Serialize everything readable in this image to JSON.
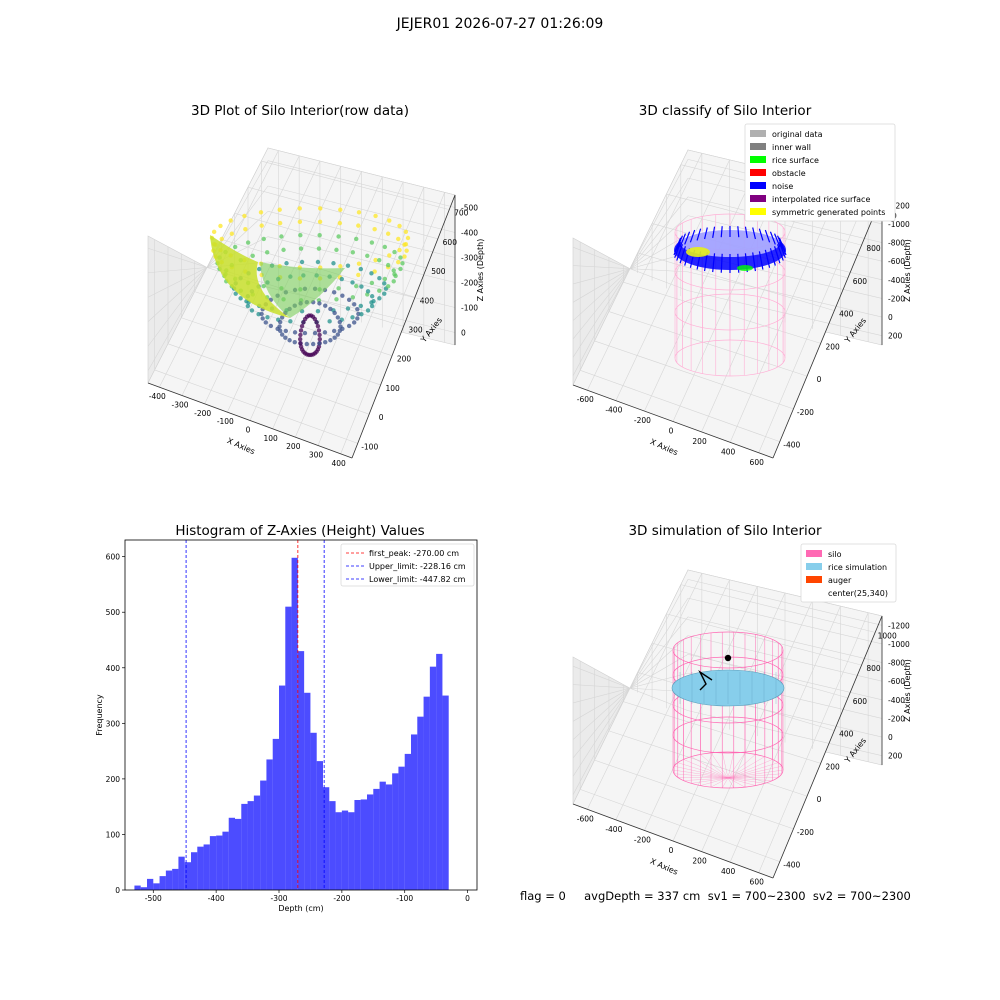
{
  "suptitle": "JEJER01 2026-07-27 01:26:09",
  "panels": {
    "raw": {
      "title": "3D Plot of Silo Interior(row data)",
      "xlabel": "X Axies",
      "ylabel": "Y Axies",
      "zlabel": "Z Axies (Depth)",
      "xticks": [
        "-400",
        "-300",
        "-200",
        "-100",
        "0",
        "100",
        "200",
        "300",
        "400"
      ],
      "yticks": [
        "-100",
        "0",
        "100",
        "200",
        "300",
        "400",
        "500",
        "600",
        "700"
      ],
      "zticks": [
        "0",
        "-100",
        "-200",
        "-300",
        "-400",
        "-500"
      ],
      "colormap": "viridis"
    },
    "classify": {
      "title": "3D classify of Silo Interior",
      "xlabel": "X Axies",
      "ylabel": "Y Axies",
      "zlabel": "Z Axies (Depth)",
      "xticks": [
        "-600",
        "-400",
        "-200",
        "0",
        "200",
        "400",
        "600"
      ],
      "yticks": [
        "-400",
        "-200",
        "0",
        "200",
        "400",
        "600",
        "800",
        "1000"
      ],
      "zticks": [
        "200",
        "0",
        "-200",
        "-400",
        "-600",
        "-800",
        "-1000",
        "-1200"
      ],
      "legend": [
        {
          "label": "original data",
          "color": "#b0b0b0"
        },
        {
          "label": "inner wall",
          "color": "#808080"
        },
        {
          "label": "rice surface",
          "color": "#00ff00"
        },
        {
          "label": "obstacle",
          "color": "#ff0000"
        },
        {
          "label": "noise",
          "color": "#0000ff"
        },
        {
          "label": "interpolated rice surface",
          "color": "#800080"
        },
        {
          "label": "symmetric generated points",
          "color": "#ffff00"
        }
      ]
    },
    "simulation": {
      "title": "3D simulation of Silo Interior",
      "xlabel": "X Axies",
      "ylabel": "Y Axies",
      "zlabel": "Z Axies (Depth)",
      "xticks": [
        "-600",
        "-400",
        "-200",
        "0",
        "200",
        "400",
        "600"
      ],
      "yticks": [
        "-400",
        "-200",
        "0",
        "200",
        "400",
        "600",
        "800",
        "1000"
      ],
      "zticks": [
        "200",
        "0",
        "-200",
        "-400",
        "-600",
        "-800",
        "-1000",
        "-1200"
      ],
      "legend": [
        {
          "label": "silo",
          "color": "#ff69b4"
        },
        {
          "label": "rice simulation",
          "color": "#87ceeb"
        },
        {
          "label": "auger",
          "color": "#ff4500"
        },
        {
          "label": "center(25,340)",
          "color": ""
        }
      ]
    }
  },
  "status_line": "flag = 0     avgDepth = 337 cm  sv1 = 700~2300  sv2 = 700~2300",
  "chart_data": {
    "type": "bar",
    "title": "Histogram of Z-Axies (Height) Values",
    "xlabel": "Depth (cm)",
    "ylabel": "Frequency",
    "bar_color": "#0000ff",
    "xlim": [
      -545,
      15
    ],
    "ylim": [
      0,
      630
    ],
    "bin_start": -530,
    "bin_width": 10,
    "x_ticks": [
      -500,
      -400,
      -300,
      -200,
      -100,
      0
    ],
    "y_ticks": [
      0,
      100,
      200,
      300,
      400,
      500,
      600
    ],
    "values": [
      8,
      5,
      20,
      12,
      25,
      35,
      38,
      60,
      50,
      68,
      78,
      82,
      97,
      98,
      105,
      130,
      128,
      155,
      160,
      170,
      197,
      235,
      272,
      368,
      510,
      598,
      430,
      355,
      283,
      232,
      185,
      160,
      140,
      143,
      140,
      162,
      163,
      172,
      182,
      195,
      190,
      210,
      222,
      245,
      280,
      312,
      348,
      402,
      425,
      350,
      0,
      0
    ],
    "lines": [
      {
        "label": "first_peak: -270.00 cm",
        "x": -270.0,
        "color": "#ff0000"
      },
      {
        "label": "Upper_limit: -228.16 cm",
        "x": -228.16,
        "color": "#0000ff"
      },
      {
        "label": "Lower_limit: -447.82 cm",
        "x": -447.82,
        "color": "#0000ff"
      }
    ],
    "legend_position": "top-right"
  }
}
